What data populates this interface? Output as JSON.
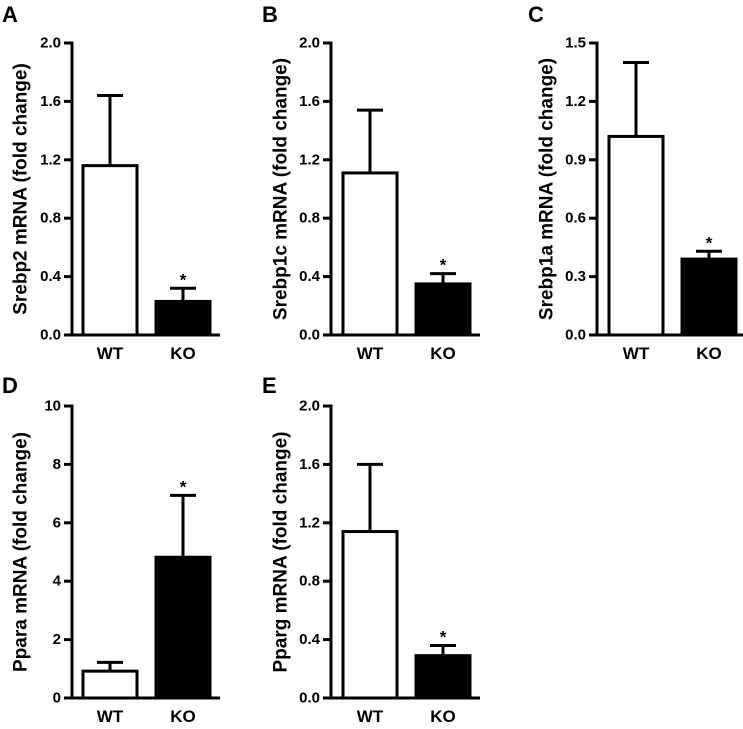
{
  "chart_data": [
    {
      "panel": "A",
      "type": "bar",
      "ylabel": "Srebp2 mRNA (fold change)",
      "categories": [
        "WT",
        "KO"
      ],
      "values": [
        1.16,
        0.23
      ],
      "errors": [
        0.48,
        0.09
      ],
      "ylim": [
        0,
        2.0
      ],
      "yticks": [
        "0.0",
        "0.4",
        "0.8",
        "1.2",
        "1.6",
        "2.0"
      ],
      "significance": [
        "",
        "*"
      ],
      "fills": [
        "#ffffff",
        "#000000"
      ]
    },
    {
      "panel": "B",
      "type": "bar",
      "ylabel": "Srebp1c mRNA (fold change)",
      "categories": [
        "WT",
        "KO"
      ],
      "values": [
        1.11,
        0.35
      ],
      "errors": [
        0.43,
        0.07
      ],
      "ylim": [
        0,
        2.0
      ],
      "yticks": [
        "0.0",
        "0.4",
        "0.8",
        "1.2",
        "1.6",
        "2.0"
      ],
      "significance": [
        "",
        "*"
      ],
      "fills": [
        "#ffffff",
        "#000000"
      ]
    },
    {
      "panel": "C",
      "type": "bar",
      "ylabel": "Srebp1a mRNA (fold change)",
      "categories": [
        "WT",
        "KO"
      ],
      "values": [
        1.02,
        0.39
      ],
      "errors": [
        0.38,
        0.04
      ],
      "ylim": [
        0,
        1.5
      ],
      "yticks": [
        "0.0",
        "0.3",
        "0.6",
        "0.9",
        "1.2",
        "1.5"
      ],
      "significance": [
        "",
        "*"
      ],
      "fills": [
        "#ffffff",
        "#000000"
      ]
    },
    {
      "panel": "D",
      "type": "bar",
      "ylabel": "Ppara mRNA (fold change)",
      "categories": [
        "WT",
        "KO"
      ],
      "values": [
        0.92,
        4.82
      ],
      "errors": [
        0.3,
        2.12
      ],
      "ylim": [
        0,
        10
      ],
      "yticks": [
        "0",
        "2",
        "4",
        "6",
        "8",
        "10"
      ],
      "significance": [
        "",
        "*"
      ],
      "fills": [
        "#ffffff",
        "#000000"
      ]
    },
    {
      "panel": "E",
      "type": "bar",
      "ylabel": "Pparg mRNA (fold change)",
      "categories": [
        "WT",
        "KO"
      ],
      "values": [
        1.14,
        0.29
      ],
      "errors": [
        0.46,
        0.07
      ],
      "ylim": [
        0,
        2.0
      ],
      "yticks": [
        "0.0",
        "0.4",
        "0.8",
        "1.2",
        "1.6",
        "2.0"
      ],
      "significance": [
        "",
        "*"
      ],
      "fills": [
        "#ffffff",
        "#000000"
      ]
    }
  ]
}
